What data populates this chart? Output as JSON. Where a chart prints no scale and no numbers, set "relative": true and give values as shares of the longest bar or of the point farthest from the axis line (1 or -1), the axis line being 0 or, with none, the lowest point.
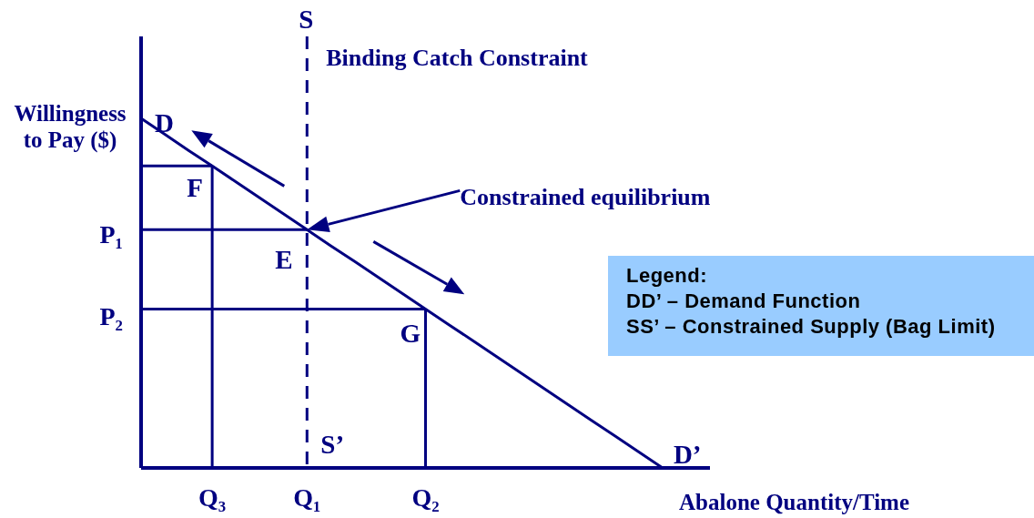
{
  "chart_data": {
    "type": "line",
    "relative": true,
    "xlabel": "Abalone Quantity/Time",
    "ylabel": "Willingness to Pay ($)",
    "categories": [
      null,
      null,
      null,
      "Q₃",
      null,
      null,
      null,
      "Q₁",
      null,
      null,
      null,
      null,
      "Q₂",
      null,
      null,
      null,
      null,
      null,
      null,
      null,
      null,
      null,
      null,
      null,
      null
    ],
    "series": [
      {
        "color": "#000080",
        "values": [
          0.81,
          0.773,
          0.736,
          0.7,
          0.663,
          0.626,
          0.589,
          0.552,
          0.515,
          0.479,
          0.442,
          0.405,
          0.368,
          0.331,
          0.295,
          0.258,
          0.221,
          0.184,
          0.147,
          0.11,
          0.074,
          0.037,
          0,
          null,
          null
        ]
      },
      {
        "color": "#000080",
        "values": [
          0.7,
          0.7,
          0.7,
          0.7,
          null,
          null,
          null,
          null,
          null,
          null,
          null,
          null,
          null,
          null,
          null,
          null,
          null,
          null,
          null,
          null,
          null,
          null,
          null,
          null,
          null
        ]
      },
      {
        "color": "#000080",
        "x": [
          "Q₃",
          "Q₃"
        ],
        "values": [
          0.7,
          0
        ]
      },
      {
        "color": "#000080",
        "values": [
          0.552,
          0.552,
          0.552,
          0.552,
          0.552,
          0.552,
          0.552,
          0.552,
          null,
          null,
          null,
          null,
          null,
          null,
          null,
          null,
          null,
          null,
          null,
          null,
          null,
          null,
          null,
          null,
          null
        ]
      },
      {
        "color": "#000080",
        "values": [
          0.368,
          0.368,
          0.368,
          0.368,
          0.368,
          0.368,
          0.368,
          0.368,
          0.368,
          0.368,
          0.368,
          0.368,
          0.368,
          null,
          null,
          null,
          null,
          null,
          null,
          null,
          null,
          null,
          null,
          null,
          null
        ]
      },
      {
        "color": "#000080",
        "x": [
          "Q₂",
          "Q₂"
        ],
        "values": [
          0.368,
          0
        ]
      },
      {
        "color": "#000080",
        "x": [
          "Q₁",
          "Q₁"
        ],
        "values": [
          1,
          0
        ],
        "line_style": "dashed"
      }
    ],
    "ref_lines": [
      {
        "axis": "y",
        "value": 0,
        "color": "#000080"
      }
    ],
    "annotations": [
      {
        "text": "S",
        "x": "Q₁",
        "y": 1
      },
      {
        "text": "Binding Catch Constraint",
        "x": "Q₁",
        "y": 1
      },
      "D",
      {
        "text": "F",
        "x": "Q₃",
        "y": 0.7
      },
      "Constrained equilibrium",
      "P₁",
      {
        "text": "E",
        "x": "Q₁",
        "y": 0.552
      },
      "P₂",
      {
        "text": "G",
        "x": "Q₂",
        "y": 0.368
      },
      {
        "text": "S’",
        "x": "Q₁",
        "y": 0
      },
      "D’",
      "Legend:",
      "DD’ – Demand Function",
      "SS’ – Constrained Supply (Bag Limit)"
    ]
  }
}
